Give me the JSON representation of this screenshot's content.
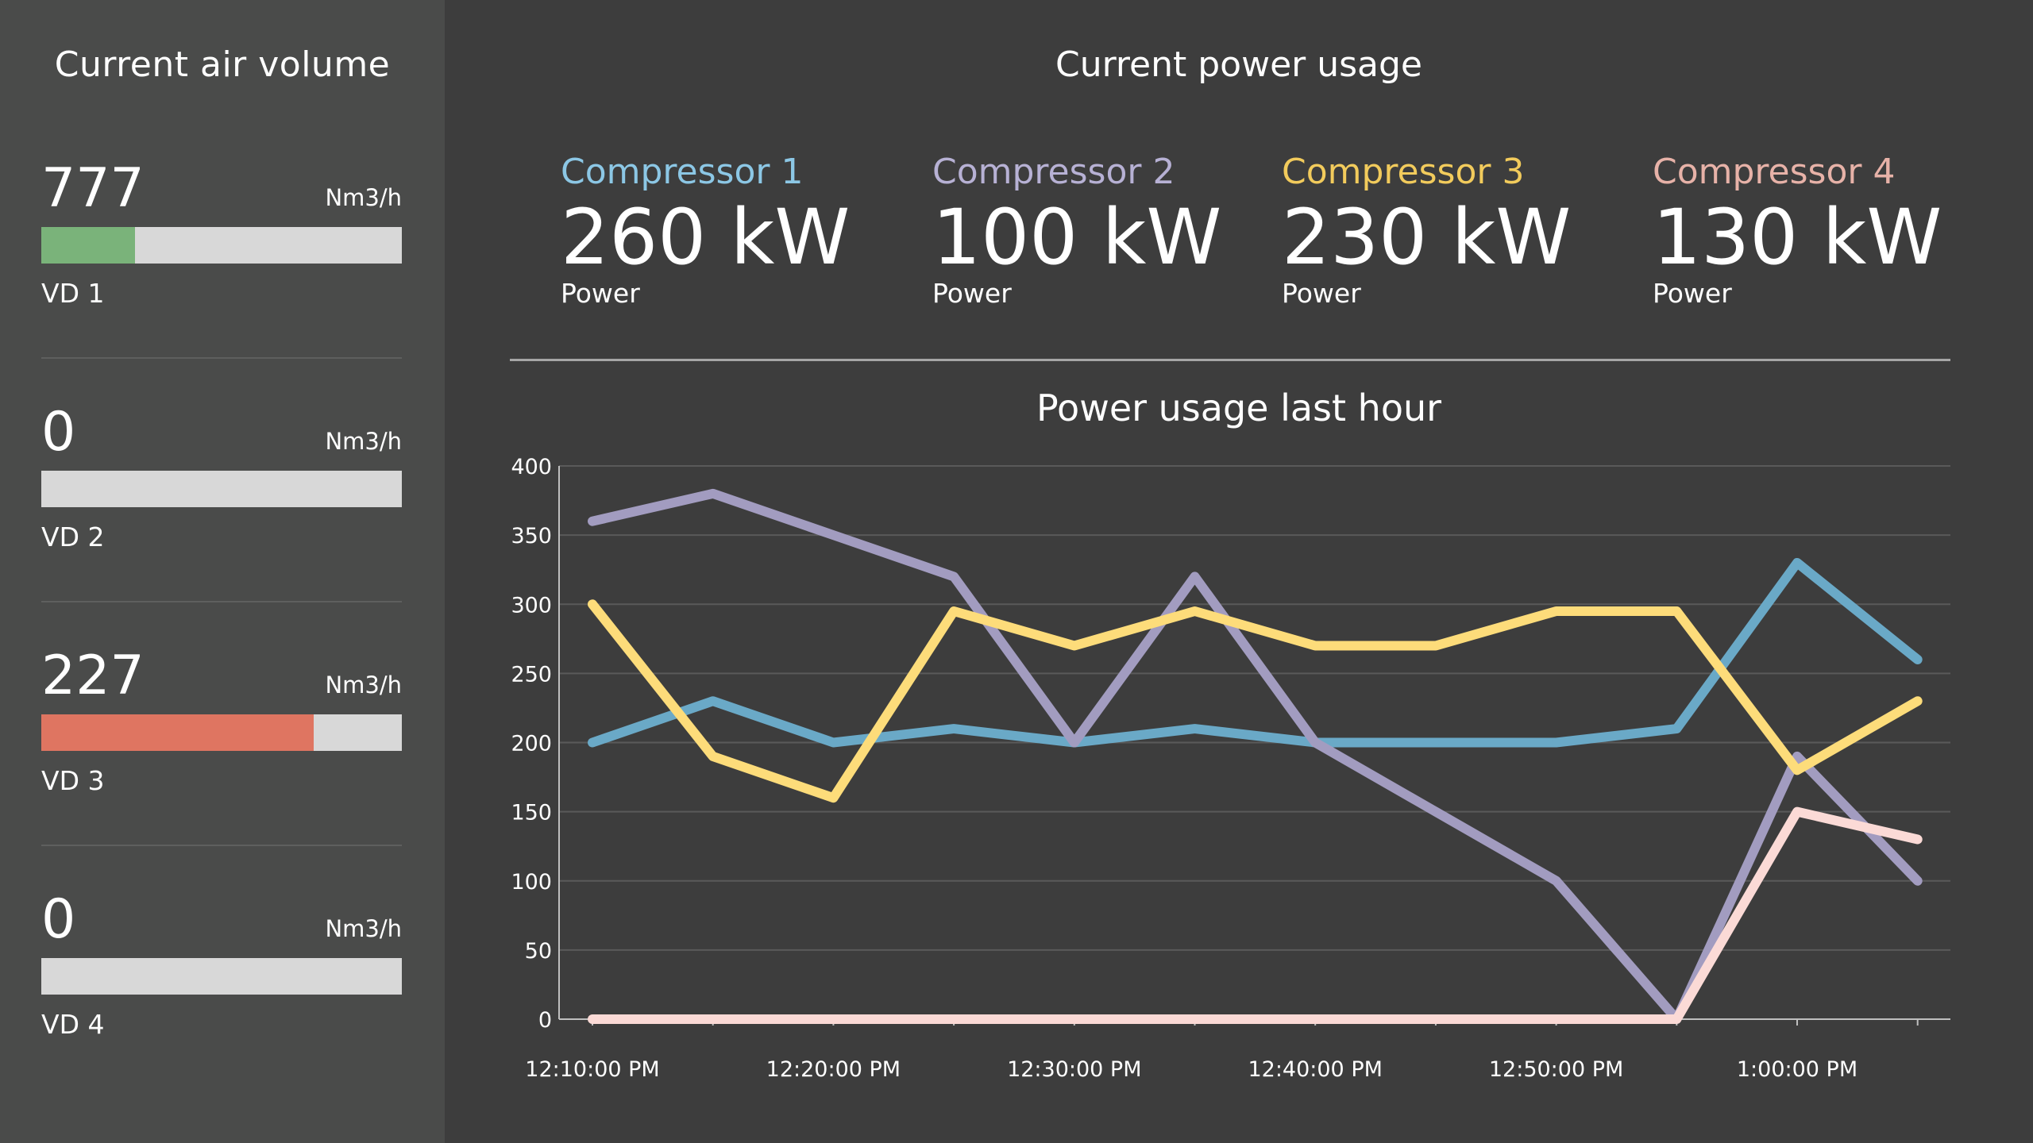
{
  "left": {
    "title": "Current air volume",
    "items": [
      {
        "value": "777",
        "unit": "Nm3/h",
        "label": "VD 1",
        "fill_fraction": 0.26,
        "fill_color": "#7ab37a"
      },
      {
        "value": "0",
        "unit": "Nm3/h",
        "label": "VD 2",
        "fill_fraction": 0,
        "fill_color": "#7ab37a"
      },
      {
        "value": "227",
        "unit": "Nm3/h",
        "label": "VD 3",
        "fill_fraction": 0.755,
        "fill_color": "#df7561"
      },
      {
        "value": "0",
        "unit": "Nm3/h",
        "label": "VD 4",
        "fill_fraction": 0,
        "fill_color": "#7ab37a"
      }
    ]
  },
  "right": {
    "title": "Current power usage",
    "compressors": [
      {
        "name": "Compressor 1",
        "value": "260 kW",
        "sub": "Power",
        "color": "#8cc7e5"
      },
      {
        "name": "Compressor 2",
        "value": "100 kW",
        "sub": "Power",
        "color": "#b7b1d4"
      },
      {
        "name": "Compressor 3",
        "value": "230 kW",
        "sub": "Power",
        "color": "#f2cb5c"
      },
      {
        "name": "Compressor 4",
        "value": "130 kW",
        "sub": "Power",
        "color": "#e7b2a8"
      }
    ]
  },
  "chart_data": {
    "type": "line",
    "title": "Power usage last hour",
    "x": [
      "12:10:00 PM",
      "12:15:00 PM",
      "12:20:00 PM",
      "12:25:00 PM",
      "12:30:00 PM",
      "12:35:00 PM",
      "12:40:00 PM",
      "12:45:00 PM",
      "12:50:00 PM",
      "12:55:00 PM",
      "1:00:00 PM",
      "1:05:00 PM"
    ],
    "x_tick_labels": [
      "12:10:00 PM",
      "12:20:00 PM",
      "12:30:00 PM",
      "12:40:00 PM",
      "12:50:00 PM",
      "1:00:00 PM"
    ],
    "y_ticks": [
      "0",
      "50",
      "100",
      "150",
      "200",
      "250",
      "300",
      "350",
      "400"
    ],
    "ylim": [
      0,
      400
    ],
    "grid": true,
    "series": [
      {
        "color": "#6aa9c7",
        "values": [
          200,
          230,
          200,
          210,
          200,
          210,
          200,
          200,
          200,
          210,
          330,
          260
        ]
      },
      {
        "color": "#a29cc0",
        "values": [
          360,
          380,
          350,
          320,
          200,
          320,
          200,
          150,
          100,
          0,
          190,
          100
        ]
      },
      {
        "color": "#fddc7a",
        "values": [
          300,
          190,
          160,
          295,
          270,
          295,
          270,
          270,
          295,
          295,
          180,
          230
        ]
      },
      {
        "color": "#fbdad6",
        "values": [
          0,
          0,
          0,
          0,
          0,
          0,
          0,
          0,
          0,
          0,
          150,
          130
        ]
      }
    ]
  }
}
